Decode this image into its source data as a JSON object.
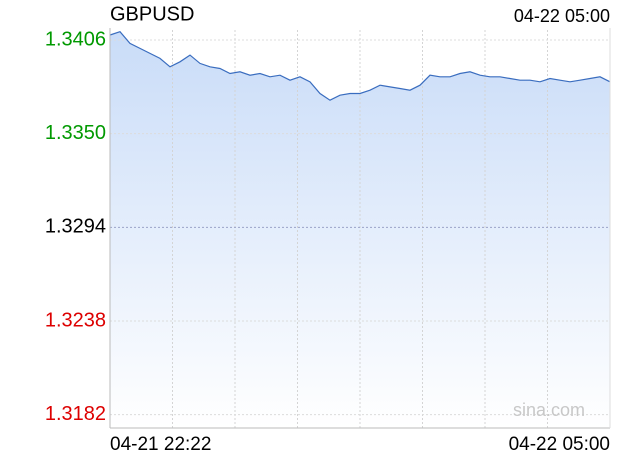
{
  "chart_data": {
    "type": "area",
    "title": "GBPUSD",
    "timestamp": "04-22 05:00",
    "watermark": "sina.com",
    "x_start_label": "04-21 22:22",
    "x_end_label": "04-22 05:00",
    "color": "#3a6dbf",
    "fill_color": "#c9dcf8",
    "ylim": [
      1.3174,
      1.3412
    ],
    "yticks": [
      1.3406,
      {
        "value": 1.335,
        "label": "1.3350"
      },
      1.3294,
      1.3238,
      1.3182
    ],
    "ytick_colors": [
      "#009900",
      "#009900",
      "#000000",
      "#dd0000",
      "#dd0000"
    ],
    "xgrid_divisions": 8,
    "grid": true,
    "values": [
      1.3409,
      1.3411,
      1.3404,
      1.3401,
      1.3398,
      1.3395,
      1.339,
      1.3393,
      1.3397,
      1.3392,
      1.339,
      1.3389,
      1.3386,
      1.3387,
      1.3385,
      1.3386,
      1.3384,
      1.3385,
      1.3382,
      1.3384,
      1.3381,
      1.3374,
      1.337,
      1.3373,
      1.3374,
      1.3374,
      1.3376,
      1.3379,
      1.3378,
      1.3377,
      1.3376,
      1.3379,
      1.3385,
      1.3384,
      1.3384,
      1.3386,
      1.3387,
      1.3385,
      1.3384,
      1.3384,
      1.3383,
      1.3382,
      1.3382,
      1.3381,
      1.3383,
      1.3382,
      1.3381,
      1.3382,
      1.3383,
      1.3384,
      1.3381
    ]
  }
}
